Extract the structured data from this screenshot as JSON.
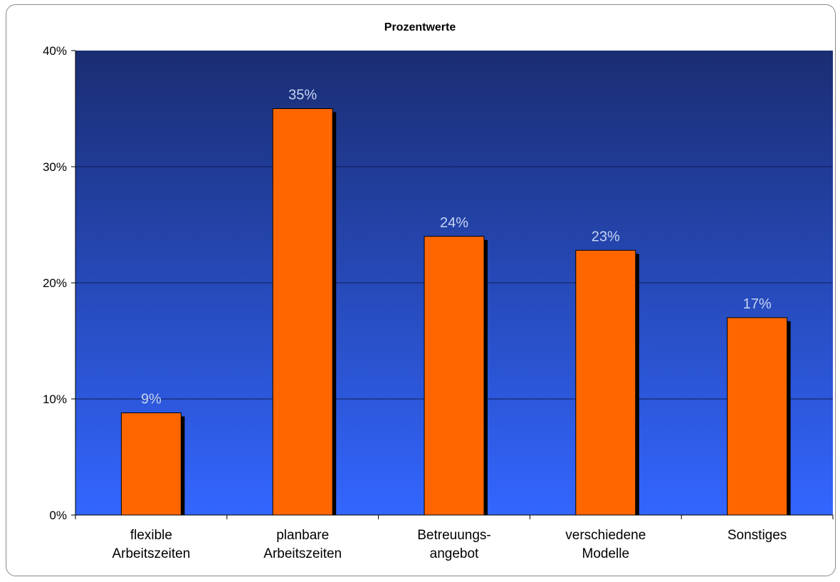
{
  "chart_data": {
    "type": "bar",
    "title": "Prozentwerte",
    "categories": [
      [
        "flexible",
        "Arbeitszeiten"
      ],
      [
        "planbare",
        "Arbeitszeiten"
      ],
      [
        "Betreuungs-",
        "angebot"
      ],
      [
        "verschiedene",
        "Modelle"
      ],
      [
        "Sonstiges"
      ]
    ],
    "values": [
      8.8,
      35,
      24,
      22.8,
      17
    ],
    "value_labels": [
      "9%",
      "35%",
      "24%",
      "23%",
      "17%"
    ],
    "ylim": [
      0,
      40
    ],
    "yticks": [
      {
        "value": 0,
        "label": "0%"
      },
      {
        "value": 10,
        "label": "10%"
      },
      {
        "value": 20,
        "label": "20%"
      },
      {
        "value": 30,
        "label": "30%"
      },
      {
        "value": 40,
        "label": "40%"
      }
    ],
    "grid": true,
    "legend": "none",
    "colors": {
      "bar": "#ff6600",
      "bar_shadow": "#000000",
      "plot_top": "#1a2d72",
      "plot_bottom": "#3366ff",
      "value_label": "#c8d4f2",
      "gridline": "#0f1c55"
    }
  }
}
